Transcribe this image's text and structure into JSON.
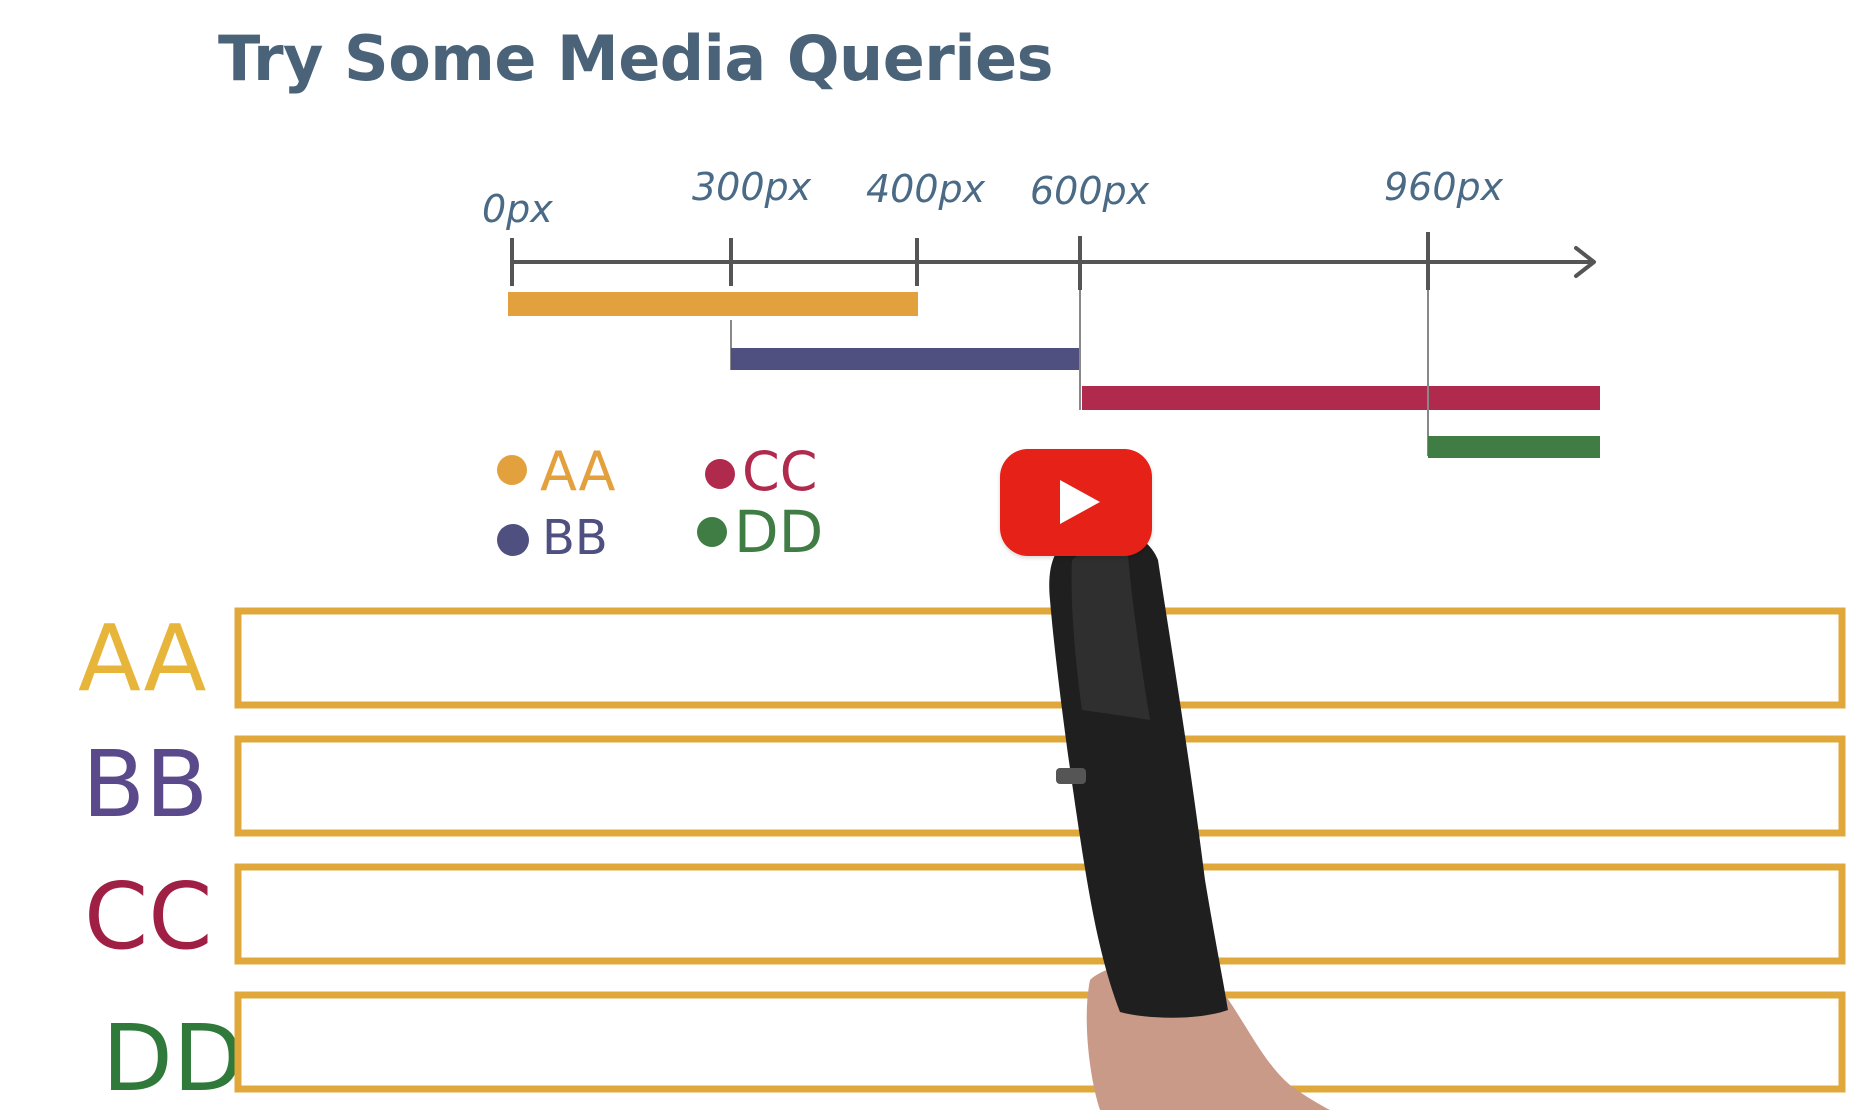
{
  "title": "Try Some Media Queries",
  "timeline": {
    "ticks": [
      "0px",
      "300px",
      "400px",
      "600px",
      "960px"
    ]
  },
  "legend": [
    {
      "label": "AA",
      "color": "#e3a13e"
    },
    {
      "label": "BB",
      "color": "#4f5080"
    },
    {
      "label": "CC",
      "color": "#b02a4e"
    },
    {
      "label": "DD",
      "color": "#3f7d45"
    }
  ],
  "answer_rows": [
    {
      "label": "AA",
      "color": "#e6b53a"
    },
    {
      "label": "BB",
      "color": "#5a4a8c"
    },
    {
      "label": "CC",
      "color": "#a01f45"
    },
    {
      "label": "DD",
      "color": "#2f7a3a"
    }
  ],
  "video": {
    "play_icon": "play-icon",
    "button_color": "#e62117"
  }
}
